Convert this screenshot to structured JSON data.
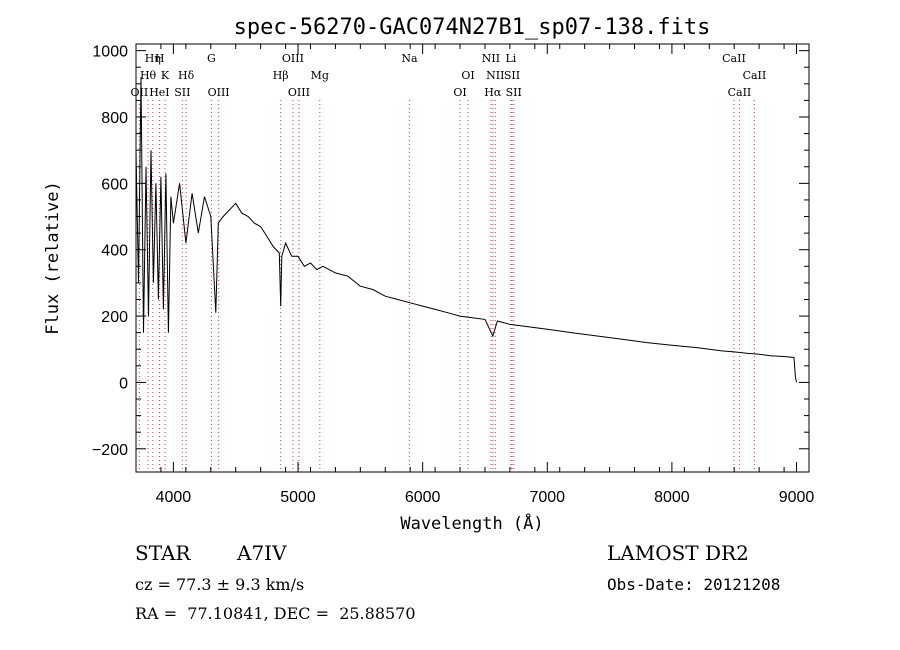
{
  "chart_data": {
    "type": "line",
    "title": "spec-56270-GAC074N27B1_sp07-138.fits",
    "xlabel": "Wavelength (Å)",
    "ylabel": "Flux (relative)",
    "xlim": [
      3700,
      9100
    ],
    "ylim": [
      -270,
      1020
    ],
    "x_ticks": [
      4000,
      5000,
      6000,
      7000,
      8000,
      9000
    ],
    "y_ticks": [
      -200,
      0,
      200,
      400,
      600,
      800,
      1000
    ],
    "grid": false,
    "series": [
      {
        "x": [
          3700,
          3720,
          3740,
          3760,
          3780,
          3800,
          3820,
          3840,
          3860,
          3880,
          3900,
          3920,
          3940,
          3960,
          3980,
          4000,
          4050,
          4100,
          4150,
          4200,
          4250,
          4300,
          4340,
          4360,
          4400,
          4450,
          4500,
          4550,
          4600,
          4650,
          4700,
          4750,
          4800,
          4850,
          4861,
          4870,
          4900,
          4950,
          5000,
          5050,
          5100,
          5150,
          5200,
          5300,
          5400,
          5500,
          5600,
          5700,
          5800,
          5900,
          6000,
          6100,
          6200,
          6300,
          6400,
          6500,
          6563,
          6600,
          6700,
          6800,
          7000,
          7200,
          7400,
          7600,
          7800,
          8000,
          8200,
          8400,
          8500,
          8600,
          8700,
          8800,
          8900,
          8980,
          8990,
          9000
        ],
        "y": [
          700,
          300,
          920,
          150,
          650,
          200,
          700,
          300,
          600,
          250,
          620,
          220,
          630,
          150,
          560,
          480,
          600,
          420,
          570,
          450,
          560,
          500,
          210,
          480,
          500,
          520,
          540,
          510,
          500,
          480,
          470,
          440,
          410,
          390,
          230,
          380,
          420,
          380,
          380,
          350,
          360,
          340,
          350,
          330,
          320,
          290,
          280,
          260,
          250,
          240,
          230,
          220,
          210,
          200,
          195,
          190,
          140,
          185,
          175,
          170,
          160,
          150,
          140,
          130,
          120,
          112,
          105,
          95,
          92,
          88,
          85,
          80,
          78,
          75,
          20,
          0
        ]
      }
    ],
    "lines": [
      {
        "label": "Hη",
        "x": 3835,
        "row": 0
      },
      {
        "label": "H",
        "x": 3890,
        "row": 0
      },
      {
        "label": "Hθ",
        "x": 3797,
        "row": 1
      },
      {
        "label": "K",
        "x": 3933,
        "row": 1
      },
      {
        "label": "Hδ",
        "x": 4102,
        "row": 1
      },
      {
        "label": "OII",
        "x": 3727,
        "row": 2
      },
      {
        "label": "HeI",
        "x": 3888,
        "row": 2
      },
      {
        "label": "SII",
        "x": 4072,
        "row": 2
      },
      {
        "label": "G",
        "x": 4305,
        "row": 0
      },
      {
        "label": "OIII",
        "x": 4363,
        "row": 2
      },
      {
        "label": "OIII",
        "x": 4959,
        "row": 0
      },
      {
        "label": "Hβ",
        "x": 4861,
        "row": 1
      },
      {
        "label": "Mg",
        "x": 5175,
        "row": 1
      },
      {
        "label": "OIII",
        "x": 5007,
        "row": 2
      },
      {
        "label": "Na",
        "x": 5894,
        "row": 0
      },
      {
        "label": "OI",
        "x": 6364,
        "row": 1
      },
      {
        "label": "OI",
        "x": 6300,
        "row": 2
      },
      {
        "label": "NII",
        "x": 6548,
        "row": 0
      },
      {
        "label": "Li",
        "x": 6708,
        "row": 0
      },
      {
        "label": "NII",
        "x": 6583,
        "row": 1
      },
      {
        "label": "SII",
        "x": 6717,
        "row": 1
      },
      {
        "label": "Hα",
        "x": 6563,
        "row": 2
      },
      {
        "label": "SII",
        "x": 6731,
        "row": 2
      },
      {
        "label": "CaII",
        "x": 8498,
        "row": 0
      },
      {
        "label": "CaII",
        "x": 8662,
        "row": 1
      },
      {
        "label": "CaII",
        "x": 8542,
        "row": 2
      }
    ]
  },
  "info": {
    "object_class": "STAR",
    "subclass": "A7IV",
    "survey": "LAMOST DR2",
    "cz": "cz = 77.3 ± 9.3 km/s",
    "obs_date": "Obs-Date: 20121208",
    "coords": "RA =  77.10841, DEC =  25.88570"
  }
}
